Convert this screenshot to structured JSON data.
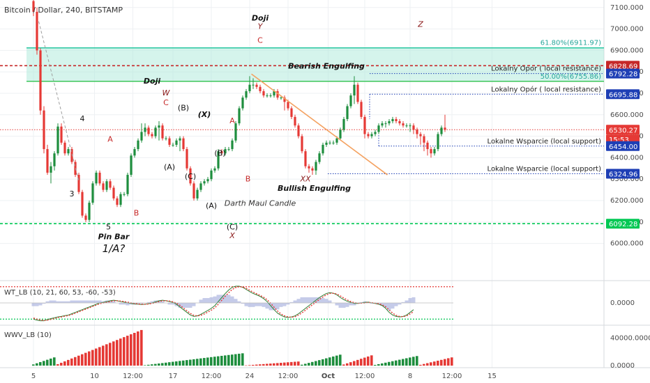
{
  "chart_data": {
    "type": "candlestick",
    "title": "Bitcoin / Dollar, 240, BITSTAMP",
    "price_axis": {
      "ylim": [
        5830,
        7135
      ],
      "ticks": [
        "7100.000",
        "7000.000",
        "6900.000",
        "6800.000",
        "6700.000",
        "6600.000",
        "6500.000",
        "6400.000",
        "6300.000",
        "6200.000",
        "6100.000",
        "6000.000"
      ],
      "tick_values": [
        7100,
        7000,
        6900,
        6800,
        6700,
        6600,
        6500,
        6400,
        6300,
        6200,
        6100,
        6000
      ]
    },
    "time_axis": {
      "ticks": [
        "5",
        "10",
        "12:00",
        "17",
        "12:00",
        "24",
        "12:00",
        "Oct",
        "12:00",
        "8",
        "12:00",
        "15"
      ],
      "tick_units": [
        0,
        17.5,
        28.5,
        40,
        51,
        62,
        73,
        84.5,
        95,
        108,
        120,
        131.5
      ],
      "grid": true
    },
    "price_tags": [
      {
        "label": "6828.69",
        "value": 6828.69,
        "color": "#c62828"
      },
      {
        "label": "6792.28",
        "value": 6792.28,
        "color": "#1e3fb5"
      },
      {
        "label": "6695.88",
        "value": 6695.88,
        "color": "#1e3fb5"
      },
      {
        "label": "6530.27",
        "value": 6530.27,
        "color": "#e53935"
      },
      {
        "label": "15:53",
        "value": 6485,
        "color": "#e53935"
      },
      {
        "label": "6454.00",
        "value": 6454.0,
        "color": "#1e3fb5"
      },
      {
        "label": "6324.96",
        "value": 6324.96,
        "color": "#1e3fb5"
      },
      {
        "label": "6092.28",
        "value": 6092.28,
        "color": "#00c853"
      }
    ],
    "fib_zone": {
      "top": 6911.97,
      "bottom": 6755.86,
      "color": "#26c6a0",
      "labels": [
        "61.80%(6911.97)",
        "50.00%(6755.86)"
      ]
    },
    "horizontal_lines": [
      {
        "value": 6828.69,
        "color": "#c62828",
        "style": "dashed",
        "label": ""
      },
      {
        "value": 6792.28,
        "color": "#1e3fb5",
        "style": "dotted",
        "label": "Lokalny Opor ( local resistance)"
      },
      {
        "value": 6695.88,
        "color": "#1e3fb5",
        "style": "dotted",
        "label": "Lokalny Opór ( local resistance)"
      },
      {
        "value": 6530.27,
        "color": "#e53935",
        "style": "dotted",
        "label": ""
      },
      {
        "value": 6454.0,
        "color": "#1e3fb5",
        "style": "dotted",
        "label": "Lokalne Wsparcie (local support)"
      },
      {
        "value": 6324.96,
        "color": "#1e3fb5",
        "style": "dotted",
        "label": "Lokalne Wsparcie (local support)"
      },
      {
        "value": 6092.28,
        "color": "#00c853",
        "style": "dashed",
        "label": ""
      }
    ],
    "trend_line": {
      "x": [
        62.5,
        101.5
      ],
      "y": [
        6790,
        6320
      ],
      "color": "#f4a261"
    },
    "wave_line": {
      "x": [
        1.5,
        13
      ],
      "y": [
        7035,
        6290
      ],
      "color": "#9e9e9e"
    },
    "candles": {
      "x_start": 0,
      "x_step": 1,
      "close": [
        7080,
        6900,
        6620,
        6440,
        6330,
        6360,
        6420,
        6545,
        6470,
        6420,
        6440,
        6380,
        6320,
        6240,
        6130,
        6110,
        6190,
        6280,
        6330,
        6280,
        6250,
        6290,
        6260,
        6210,
        6180,
        6230,
        6230,
        6320,
        6410,
        6440,
        6480,
        6520,
        6540,
        6510,
        6500,
        6540,
        6550,
        6490,
        6490,
        6460,
        6460,
        6480,
        6490,
        6440,
        6350,
        6280,
        6210,
        6250,
        6280,
        6290,
        6300,
        6340,
        6350,
        6430,
        6420,
        6440,
        6440,
        6480,
        6560,
        6630,
        6680,
        6710,
        6740,
        6740,
        6730,
        6710,
        6690,
        6690,
        6690,
        6710,
        6680,
        6680,
        6660,
        6630,
        6590,
        6550,
        6500,
        6430,
        6360,
        6350,
        6340,
        6380,
        6420,
        6460,
        6470,
        6470,
        6470,
        6490,
        6530,
        6580,
        6640,
        6690,
        6740,
        6660,
        6590,
        6510,
        6500,
        6510,
        6520,
        6550,
        6560,
        6560,
        6570,
        6580,
        6570,
        6560,
        6550,
        6550,
        6550,
        6530,
        6510,
        6500,
        6470,
        6440,
        6420,
        6440,
        6510,
        6540,
        6530
      ],
      "open": [
        7130,
        7080,
        6900,
        6620,
        6440,
        6330,
        6360,
        6420,
        6545,
        6470,
        6420,
        6440,
        6380,
        6320,
        6240,
        6130,
        6110,
        6190,
        6280,
        6330,
        6280,
        6250,
        6290,
        6260,
        6210,
        6180,
        6230,
        6230,
        6320,
        6410,
        6440,
        6480,
        6520,
        6540,
        6510,
        6500,
        6540,
        6550,
        6490,
        6490,
        6460,
        6460,
        6480,
        6490,
        6440,
        6350,
        6280,
        6210,
        6250,
        6280,
        6290,
        6300,
        6340,
        6350,
        6430,
        6420,
        6440,
        6440,
        6480,
        6560,
        6630,
        6680,
        6710,
        6740,
        6740,
        6730,
        6710,
        6690,
        6690,
        6690,
        6710,
        6680,
        6680,
        6660,
        6630,
        6590,
        6550,
        6500,
        6430,
        6360,
        6350,
        6340,
        6380,
        6420,
        6460,
        6470,
        6470,
        6470,
        6490,
        6530,
        6580,
        6640,
        6690,
        6740,
        6660,
        6590,
        6510,
        6500,
        6510,
        6520,
        6550,
        6560,
        6560,
        6570,
        6580,
        6570,
        6560,
        6550,
        6550,
        6550,
        6530,
        6510,
        6500,
        6470,
        6440,
        6420,
        6440,
        6510,
        6540
      ],
      "high": [
        7150,
        7100,
        6910,
        6640,
        6460,
        6380,
        6430,
        6560,
        6560,
        6480,
        6450,
        6450,
        6390,
        6330,
        6250,
        6140,
        6200,
        6290,
        6340,
        6340,
        6290,
        6300,
        6300,
        6270,
        6220,
        6240,
        6240,
        6330,
        6420,
        6450,
        6490,
        6560,
        6560,
        6550,
        6520,
        6550,
        6570,
        6560,
        6500,
        6500,
        6470,
        6490,
        6500,
        6500,
        6450,
        6360,
        6290,
        6260,
        6290,
        6300,
        6310,
        6350,
        6360,
        6440,
        6440,
        6450,
        6450,
        6490,
        6570,
        6640,
        6690,
        6720,
        6780,
        6770,
        6750,
        6740,
        6720,
        6700,
        6700,
        6720,
        6720,
        6690,
        6690,
        6670,
        6640,
        6600,
        6560,
        6510,
        6440,
        6370,
        6360,
        6390,
        6430,
        6470,
        6480,
        6480,
        6480,
        6500,
        6540,
        6590,
        6650,
        6700,
        6780,
        6750,
        6670,
        6600,
        6520,
        6520,
        6530,
        6560,
        6570,
        6570,
        6580,
        6590,
        6590,
        6580,
        6570,
        6560,
        6560,
        6560,
        6540,
        6520,
        6510,
        6480,
        6450,
        6450,
        6520,
        6550,
        6600
      ],
      "low": [
        7060,
        6880,
        6600,
        6420,
        6320,
        6280,
        6340,
        6410,
        6460,
        6410,
        6410,
        6370,
        6310,
        6230,
        6120,
        6100,
        6100,
        6180,
        6270,
        6270,
        6240,
        6240,
        6250,
        6200,
        6170,
        6170,
        6220,
        6220,
        6310,
        6400,
        6430,
        6470,
        6500,
        6500,
        6490,
        6490,
        6480,
        6480,
        6480,
        6450,
        6450,
        6450,
        6430,
        6430,
        6340,
        6270,
        6200,
        6200,
        6240,
        6270,
        6280,
        6290,
        6330,
        6340,
        6410,
        6410,
        6430,
        6430,
        6470,
        6550,
        6620,
        6670,
        6700,
        6720,
        6720,
        6700,
        6680,
        6680,
        6680,
        6680,
        6670,
        6670,
        6620,
        6620,
        6580,
        6540,
        6490,
        6420,
        6350,
        6330,
        6320,
        6320,
        6370,
        6410,
        6450,
        6460,
        6460,
        6460,
        6480,
        6520,
        6570,
        6630,
        6650,
        6650,
        6580,
        6490,
        6490,
        6490,
        6500,
        6510,
        6540,
        6540,
        6550,
        6560,
        6560,
        6550,
        6540,
        6540,
        6520,
        6510,
        6490,
        6460,
        6430,
        6410,
        6400,
        6410,
        6430,
        6500,
        6520
      ]
    },
    "annotations": [
      {
        "text": "Doji",
        "x": 65,
        "y": 7040,
        "color": "#111111",
        "style": "bold-italic"
      },
      {
        "text": "Y",
        "x": 65,
        "y": 7000,
        "color": "#8b1a1a",
        "style": "italic"
      },
      {
        "text": "C",
        "x": 65,
        "y": 6935,
        "color": "#c62828",
        "style": "normal"
      },
      {
        "text": "Z",
        "x": 111,
        "y": 7010,
        "color": "#8b1a1a",
        "style": "italic"
      },
      {
        "text": "Bearish Engulfing",
        "x": 84,
        "y": 6815,
        "color": "#111111",
        "style": "bold-italic"
      },
      {
        "text": "Doji",
        "x": 34,
        "y": 6745,
        "color": "#111111",
        "style": "bold-italic"
      },
      {
        "text": "W",
        "x": 38,
        "y": 6690,
        "color": "#8b1a1a",
        "style": "italic"
      },
      {
        "text": "C",
        "x": 38,
        "y": 6645,
        "color": "#c62828",
        "style": "normal"
      },
      {
        "text": "(B)",
        "x": 43,
        "y": 6620,
        "color": "#111111",
        "style": "normal"
      },
      {
        "text": "(X)",
        "x": 49,
        "y": 6590,
        "color": "#111111",
        "style": "bold-italic"
      },
      {
        "text": "4",
        "x": 14,
        "y": 6570,
        "color": "#111111",
        "style": "normal"
      },
      {
        "text": "A",
        "x": 57,
        "y": 6560,
        "color": "#c62828",
        "style": "normal"
      },
      {
        "text": "A",
        "x": 22,
        "y": 6475,
        "color": "#c62828",
        "style": "normal"
      },
      {
        "text": "(B)",
        "x": 53.5,
        "y": 6410,
        "color": "#111111",
        "style": "normal"
      },
      {
        "text": "(A)",
        "x": 39,
        "y": 6345,
        "color": "#111111",
        "style": "normal"
      },
      {
        "text": "(C)",
        "x": 45,
        "y": 6300,
        "color": "#111111",
        "style": "normal"
      },
      {
        "text": "B",
        "x": 61.5,
        "y": 6290,
        "color": "#c62828",
        "style": "normal"
      },
      {
        "text": "XX",
        "x": 78,
        "y": 6290,
        "color": "#8b1a1a",
        "style": "italic"
      },
      {
        "text": "Bullish Engulfing",
        "x": 80.5,
        "y": 6245,
        "color": "#111111",
        "style": "bold-italic"
      },
      {
        "text": "3",
        "x": 11,
        "y": 6220,
        "color": "#111111",
        "style": "normal"
      },
      {
        "text": "B",
        "x": 29.5,
        "y": 6130,
        "color": "#c62828",
        "style": "normal"
      },
      {
        "text": "(A)",
        "x": 51,
        "y": 6165,
        "color": "#111111",
        "style": "normal"
      },
      {
        "text": "Darth Maul Candle",
        "x": 65,
        "y": 6175,
        "color": "#333333",
        "style": "italic"
      },
      {
        "text": "5",
        "x": 21.5,
        "y": 6065,
        "color": "#111111",
        "style": "normal"
      },
      {
        "text": "(C)",
        "x": 57,
        "y": 6065,
        "color": "#111111",
        "style": "normal"
      },
      {
        "text": "X",
        "x": 57,
        "y": 6025,
        "color": "#8b1a1a",
        "style": "italic"
      },
      {
        "text": "Pin Bar",
        "x": 23,
        "y": 6020,
        "color": "#111111",
        "style": "bold-italic"
      },
      {
        "text": "1/A?",
        "x": 23,
        "y": 5960,
        "color": "#111111",
        "style": "italic-large"
      }
    ],
    "indicators": [
      {
        "name": "WT_LB (10, 21, 60, 53, -60, -53)",
        "ylim": [
          -80,
          80
        ],
        "ticks": [
          "0.0000"
        ],
        "tick_values": [
          0
        ],
        "overbought": 60,
        "oversold": -60,
        "wt1": [
          -60,
          -64,
          -66,
          -66,
          -62,
          -58,
          -55,
          -52,
          -50,
          -47,
          -45,
          -40,
          -35,
          -30,
          -25,
          -20,
          -15,
          -10,
          -5,
          0,
          2,
          5,
          8,
          10,
          8,
          5,
          3,
          0,
          -2,
          -4,
          -5,
          -6,
          -5,
          -3,
          0,
          4,
          8,
          10,
          8,
          5,
          2,
          -5,
          -15,
          -25,
          -35,
          -45,
          -50,
          -48,
          -42,
          -35,
          -28,
          -20,
          -10,
          5,
          20,
          35,
          48,
          58,
          62,
          62,
          58,
          50,
          42,
          35,
          30,
          24,
          16,
          5,
          -10,
          -25,
          -38,
          -46,
          -52,
          -54,
          -52,
          -48,
          -40,
          -30,
          -20,
          -10,
          0,
          10,
          20,
          28,
          35,
          38,
          36,
          30,
          20,
          12,
          6,
          2,
          -2,
          -2,
          0,
          2,
          3,
          0,
          -2,
          -5,
          -10,
          -20,
          -35,
          -45,
          -50,
          -52,
          -50,
          -45,
          -35,
          -25
        ],
        "wt2": [
          -56,
          -60,
          -63,
          -65,
          -64,
          -61,
          -58,
          -54,
          -52,
          -49,
          -47,
          -43,
          -38,
          -33,
          -28,
          -23,
          -18,
          -13,
          -8,
          -3,
          0,
          2,
          5,
          8,
          8,
          7,
          5,
          3,
          0,
          -2,
          -4,
          -5,
          -5,
          -4,
          -2,
          1,
          5,
          8,
          8,
          7,
          4,
          -1,
          -9,
          -19,
          -29,
          -39,
          -46,
          -48,
          -46,
          -41,
          -34,
          -27,
          -18,
          -5,
          10,
          25,
          38,
          50,
          57,
          60,
          59,
          54,
          47,
          40,
          34,
          28,
          21,
          12,
          -1,
          -16,
          -30,
          -41,
          -48,
          -52,
          -53,
          -51,
          -45,
          -37,
          -27,
          -17,
          -7,
          3,
          13,
          22,
          30,
          35,
          36,
          33,
          26,
          18,
          11,
          5,
          1,
          -1,
          -1,
          0,
          2,
          1,
          -1,
          -3,
          -7,
          -14,
          -26,
          -38,
          -46,
          -50,
          -51,
          -48,
          -41,
          -32
        ]
      },
      {
        "name": "WWV_LB (10)",
        "ylim": [
          -3000,
          58000
        ],
        "ticks": [
          "40000.0000",
          "0.0000"
        ],
        "tick_values": [
          40000,
          0
        ],
        "colors": {
          "up": "#1e8e3e",
          "down": "#e53935"
        }
      }
    ]
  }
}
